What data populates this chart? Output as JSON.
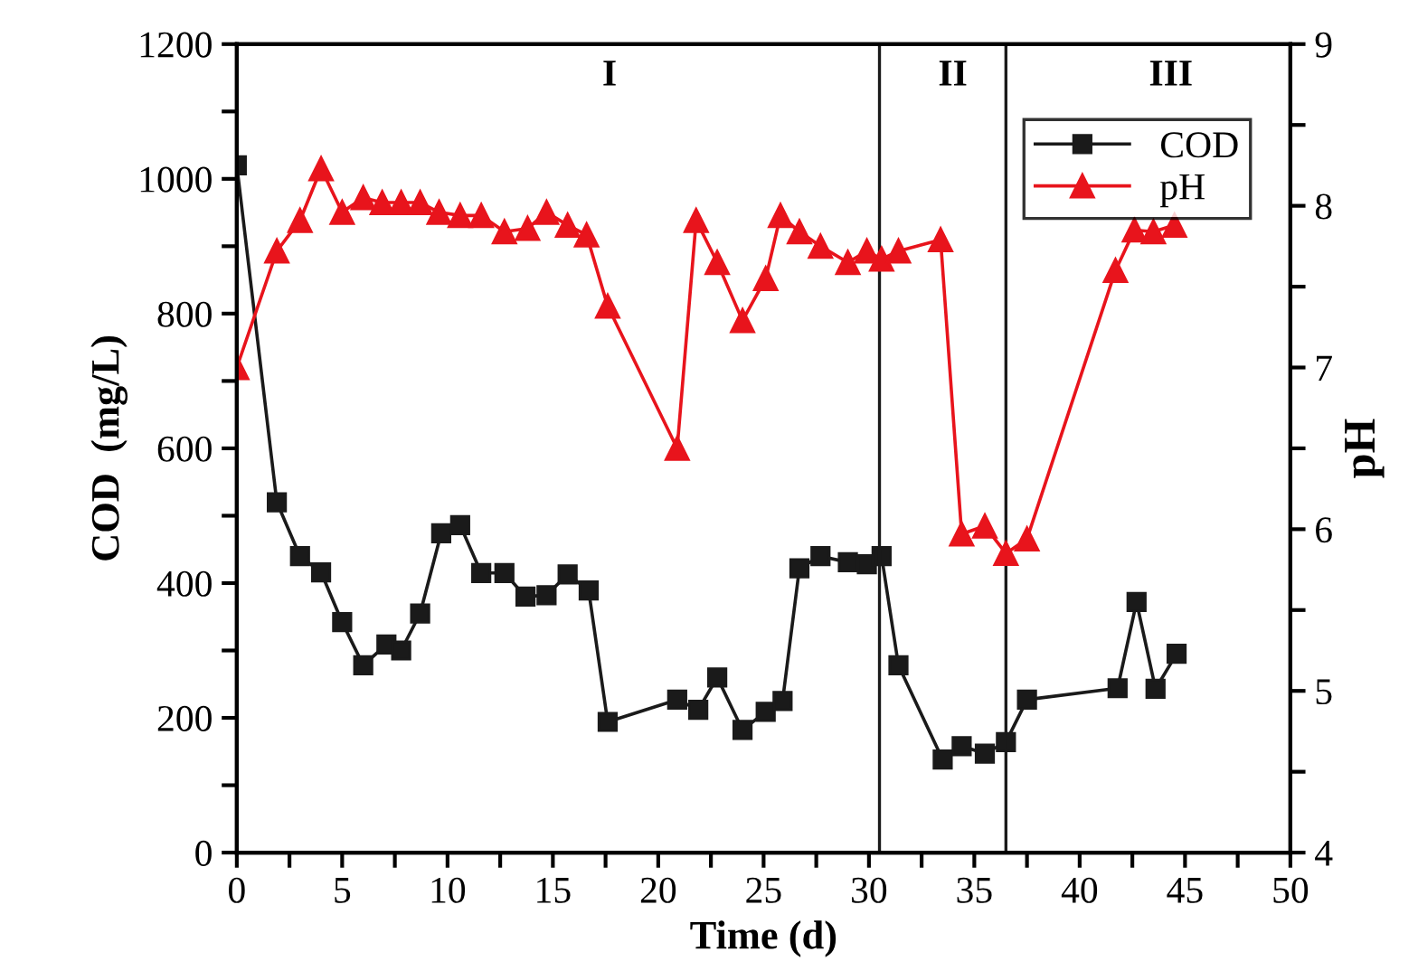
{
  "chart_data": {
    "type": "line",
    "xlabel": "Time (d)",
    "ylabel": "COD  (mg/L)",
    "y2label": "pH",
    "xlim": [
      0,
      50
    ],
    "ylim": [
      0,
      1200
    ],
    "y2lim": [
      4,
      9
    ],
    "xticks": [
      0,
      {
        "value": 2.5,
        "label": null
      },
      5,
      {
        "value": 7.5,
        "label": null
      },
      10,
      {
        "value": 12.5,
        "label": null
      },
      15,
      {
        "value": 17.5,
        "label": null
      },
      20,
      {
        "value": 22.5,
        "label": null
      },
      25,
      {
        "value": 27.5,
        "label": null
      },
      30,
      {
        "value": 32.5,
        "label": null
      },
      35,
      {
        "value": 37.5,
        "label": null
      },
      40,
      {
        "value": 42.5,
        "label": null
      },
      45,
      {
        "value": 47.5,
        "label": null
      },
      50
    ],
    "yticks": [
      0,
      {
        "value": 100,
        "label": null
      },
      200,
      {
        "value": 300,
        "label": null
      },
      400,
      {
        "value": 500,
        "label": null
      },
      600,
      {
        "value": 700,
        "label": null
      },
      800,
      {
        "value": 900,
        "label": null
      },
      1000,
      {
        "value": 1100,
        "label": null
      },
      1200
    ],
    "y2ticks": [
      4,
      {
        "value": 4.5,
        "label": null
      },
      5,
      {
        "value": 5.5,
        "label": null
      },
      6,
      {
        "value": 6.5,
        "label": null
      },
      7,
      {
        "value": 7.5,
        "label": null
      },
      8,
      {
        "value": 8.5,
        "label": null
      },
      9
    ],
    "grid": false,
    "legend": "top right",
    "series": [
      {
        "name": "COD",
        "color": "#1a1a1a",
        "marker": "square",
        "x": [
          0,
          1.9,
          3.0,
          4.0,
          5.0,
          6.0,
          7.1,
          7.8,
          8.7,
          9.7,
          10.6,
          11.6,
          12.7,
          13.7,
          14.7,
          15.7,
          16.7,
          17.6,
          20.9,
          21.9,
          22.8,
          24.0,
          25.1,
          25.9,
          26.7,
          27.7,
          29.0,
          29.9,
          30.6,
          31.4,
          33.5,
          34.4,
          35.5,
          36.5,
          37.5,
          41.8,
          42.7,
          43.6,
          44.6
        ],
        "values": [
          1020,
          520,
          440,
          416,
          342,
          278,
          309,
          300,
          355,
          474,
          486,
          415,
          415,
          380,
          382,
          413,
          389,
          194,
          227,
          212,
          260,
          182,
          209,
          225,
          422,
          440,
          431,
          428,
          440,
          278,
          138,
          158,
          147,
          164,
          227,
          244,
          372,
          243,
          295
        ]
      },
      {
        "name": "pH",
        "color": "#e8141c",
        "marker": "triangle",
        "axis": "y2",
        "x": [
          0,
          1.9,
          3.0,
          4.0,
          5.0,
          6.0,
          6.9,
          7.8,
          8.7,
          9.6,
          10.6,
          11.6,
          12.7,
          13.8,
          14.7,
          15.7,
          16.6,
          17.6,
          20.9,
          21.8,
          22.8,
          24.0,
          25.1,
          25.8,
          26.7,
          27.7,
          29.0,
          29.9,
          30.6,
          31.4,
          33.4,
          34.4,
          35.5,
          36.5,
          37.5,
          41.7,
          42.6,
          43.5,
          44.5
        ],
        "values": [
          7.0,
          7.72,
          7.91,
          8.23,
          7.96,
          8.05,
          8.02,
          8.02,
          8.02,
          7.96,
          7.94,
          7.94,
          7.84,
          7.86,
          7.96,
          7.88,
          7.82,
          7.38,
          6.5,
          7.91,
          7.65,
          7.29,
          7.55,
          7.94,
          7.84,
          7.75,
          7.65,
          7.72,
          7.67,
          7.72,
          7.79,
          5.97,
          6.02,
          5.85,
          5.94,
          7.6,
          7.85,
          7.84,
          7.88
        ]
      }
    ],
    "ref_lines": [
      {
        "axis": "x",
        "value": 30.5,
        "color": "#1a1a1a"
      },
      {
        "axis": "x",
        "value": 36.5,
        "color": "#1a1a1a"
      }
    ],
    "annotations": [
      "I",
      "II",
      "III"
    ]
  }
}
